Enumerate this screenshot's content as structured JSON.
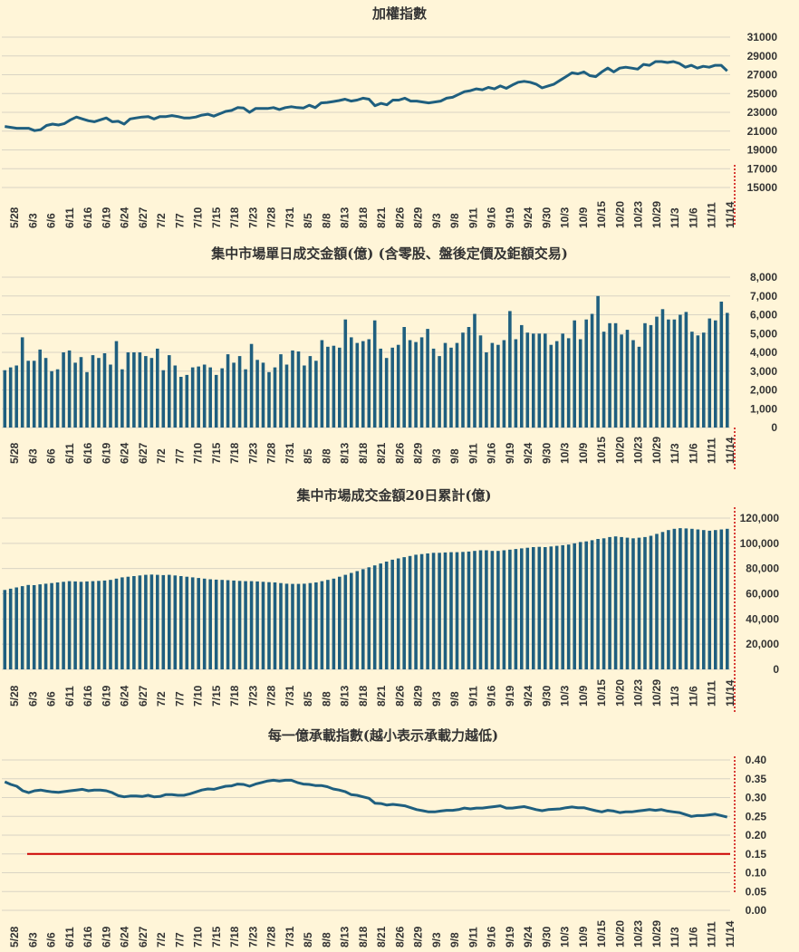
{
  "colors": {
    "background": "#FFF5D8",
    "series": "#1F5F7F",
    "reference": "#CC0000",
    "marker": "#CC0000",
    "grid": "#D9D4C4",
    "text": "#333333"
  },
  "date_labels": [
    "5/28",
    "6/3",
    "6/6",
    "6/11",
    "6/16",
    "6/19",
    "6/24",
    "6/27",
    "7/2",
    "7/7",
    "7/10",
    "7/15",
    "7/18",
    "7/23",
    "7/28",
    "7/31",
    "8/5",
    "8/8",
    "8/13",
    "8/18",
    "8/21",
    "8/26",
    "8/29",
    "9/3",
    "9/8",
    "9/11",
    "9/16",
    "9/19",
    "9/24",
    "9/30",
    "10/3",
    "10/9",
    "10/15",
    "10/20",
    "10/23",
    "10/29",
    "11/3",
    "11/6",
    "11/11",
    "11/14"
  ],
  "chart_data": [
    {
      "id": "index",
      "type": "line",
      "title": "加權指數",
      "ylim": [
        15000,
        31000
      ],
      "yticks": [
        "31000",
        "29000",
        "27000",
        "25000",
        "23000",
        "21000",
        "19000",
        "17000",
        "15000"
      ],
      "values": [
        21500,
        21400,
        21300,
        21300,
        21300,
        21050,
        21150,
        21600,
        21750,
        21650,
        21800,
        22200,
        22500,
        22300,
        22100,
        22000,
        22200,
        22400,
        22000,
        22050,
        21750,
        22300,
        22400,
        22500,
        22550,
        22300,
        22550,
        22550,
        22650,
        22550,
        22400,
        22400,
        22500,
        22700,
        22800,
        22600,
        22850,
        23100,
        23200,
        23500,
        23450,
        23000,
        23400,
        23400,
        23400,
        23500,
        23300,
        23500,
        23600,
        23500,
        23450,
        23750,
        23500,
        24000,
        24050,
        24150,
        24250,
        24400,
        24200,
        24300,
        24500,
        24400,
        23700,
        23950,
        23800,
        24300,
        24300,
        24500,
        24200,
        24200,
        24100,
        24000,
        24100,
        24200,
        24500,
        24600,
        24900,
        25200,
        25300,
        25500,
        25400,
        25650,
        25500,
        25800,
        25550,
        25900,
        26200,
        26300,
        26200,
        26000,
        25600,
        25800,
        26000,
        26400,
        26800,
        27200,
        27100,
        27300,
        26900,
        26800,
        27300,
        27700,
        27300,
        27700,
        27800,
        27700,
        27600,
        28100,
        28000,
        28400,
        28400,
        28300,
        28400,
        28200,
        27800,
        28000,
        27700,
        27900,
        27800,
        28000,
        28000,
        27400
      ]
    },
    {
      "id": "turnover",
      "type": "bar",
      "title": "集中市場單日成交金額(億) (含零股、盤後定價及鉅額交易)",
      "ylim": [
        0,
        8000
      ],
      "yticks": [
        "8,000",
        "7,000",
        "6,000",
        "5,000",
        "4,000",
        "3,000",
        "2,000",
        "1,000",
        "0"
      ],
      "values": [
        3050,
        3200,
        3300,
        4800,
        3550,
        3550,
        4150,
        3700,
        3000,
        3100,
        4000,
        4100,
        3450,
        3750,
        2950,
        3850,
        3700,
        3950,
        3350,
        4600,
        3100,
        4000,
        4000,
        4000,
        3800,
        3700,
        4200,
        3050,
        3850,
        3300,
        2700,
        2800,
        3200,
        3250,
        3350,
        3200,
        2800,
        3150,
        3900,
        3450,
        3800,
        3100,
        4450,
        3600,
        3450,
        2950,
        3200,
        3900,
        3350,
        4100,
        4050,
        3300,
        3800,
        3550,
        4650,
        4300,
        4350,
        4250,
        5750,
        4800,
        4500,
        4600,
        4700,
        5700,
        4200,
        3700,
        4250,
        4400,
        5350,
        4650,
        4550,
        4800,
        5250,
        4200,
        3800,
        4500,
        4250,
        4500,
        5050,
        5350,
        6050,
        4900,
        4000,
        4500,
        4400,
        4650,
        6200,
        4700,
        5450,
        5050,
        5000,
        5000,
        5000,
        4400,
        4600,
        5000,
        4750,
        5700,
        4700,
        5750,
        6050,
        7000,
        5100,
        5550,
        5550,
        4950,
        5200,
        4650,
        4300,
        5550,
        5450,
        5900,
        6300,
        5750,
        5750,
        6000,
        6150,
        5100,
        4900,
        5050,
        5800,
        5700,
        6700,
        6100
      ]
    },
    {
      "id": "turnover20",
      "type": "bar",
      "title": "集中市場成交金額20日累計(億)",
      "ylim": [
        0,
        120000
      ],
      "yticks": [
        "120,000",
        "100,000",
        "80,000",
        "60,000",
        "40,000",
        "20,000",
        "0"
      ],
      "values": [
        63000,
        64000,
        65000,
        66000,
        67000,
        66800,
        67500,
        68000,
        68500,
        69000,
        69500,
        70000,
        69800,
        69500,
        69800,
        70000,
        70200,
        70500,
        71000,
        72000,
        73000,
        73500,
        74000,
        74500,
        75000,
        75200,
        75000,
        74800,
        75000,
        74500,
        74000,
        73500,
        73000,
        72500,
        72000,
        71500,
        71200,
        71000,
        70800,
        70500,
        70200,
        70000,
        70000,
        69800,
        69500,
        69200,
        69000,
        68500,
        68000,
        67800,
        67800,
        68000,
        68500,
        69000,
        70000,
        71000,
        72000,
        73500,
        75000,
        76500,
        78000,
        79500,
        81000,
        82500,
        84000,
        85500,
        87000,
        88000,
        89000,
        90000,
        91000,
        91500,
        92000,
        92500,
        92500,
        92800,
        93000,
        93000,
        93200,
        93500,
        94000,
        94500,
        94500,
        94000,
        94000,
        94500,
        95000,
        95500,
        96000,
        96500,
        97000,
        97200,
        97000,
        97500,
        98000,
        98500,
        99000,
        100000,
        101000,
        101500,
        102500,
        103500,
        104000,
        105000,
        105500,
        105000,
        104500,
        104000,
        104500,
        105000,
        106000,
        107500,
        109000,
        110500,
        111500,
        112000,
        111800,
        111500,
        111000,
        110500,
        110000,
        110500,
        111000,
        111500
      ]
    },
    {
      "id": "capacity",
      "type": "line",
      "title": "每一億承載指數(越小表示承載力越低)",
      "ylim": [
        0,
        0.4
      ],
      "yticks": [
        "0.40",
        "0.35",
        "0.30",
        "0.25",
        "0.20",
        "0.15",
        "0.10",
        "0.05",
        "0.00"
      ],
      "reference_line": 0.15,
      "values": [
        0.342,
        0.335,
        0.33,
        0.318,
        0.313,
        0.318,
        0.32,
        0.317,
        0.315,
        0.314,
        0.316,
        0.318,
        0.32,
        0.322,
        0.318,
        0.32,
        0.32,
        0.318,
        0.313,
        0.305,
        0.302,
        0.304,
        0.304,
        0.303,
        0.306,
        0.302,
        0.303,
        0.308,
        0.308,
        0.306,
        0.306,
        0.31,
        0.315,
        0.32,
        0.323,
        0.322,
        0.326,
        0.33,
        0.331,
        0.336,
        0.335,
        0.33,
        0.336,
        0.34,
        0.344,
        0.346,
        0.344,
        0.346,
        0.346,
        0.34,
        0.336,
        0.335,
        0.332,
        0.332,
        0.329,
        0.323,
        0.32,
        0.316,
        0.308,
        0.306,
        0.302,
        0.298,
        0.285,
        0.284,
        0.28,
        0.282,
        0.28,
        0.278,
        0.273,
        0.268,
        0.265,
        0.262,
        0.262,
        0.264,
        0.266,
        0.266,
        0.268,
        0.272,
        0.27,
        0.272,
        0.272,
        0.274,
        0.276,
        0.278,
        0.272,
        0.272,
        0.274,
        0.276,
        0.272,
        0.268,
        0.265,
        0.268,
        0.269,
        0.27,
        0.273,
        0.275,
        0.273,
        0.273,
        0.269,
        0.265,
        0.262,
        0.266,
        0.264,
        0.26,
        0.262,
        0.262,
        0.264,
        0.266,
        0.268,
        0.266,
        0.268,
        0.264,
        0.262,
        0.26,
        0.255,
        0.25,
        0.252,
        0.252,
        0.254,
        0.256,
        0.252,
        0.248
      ]
    }
  ]
}
